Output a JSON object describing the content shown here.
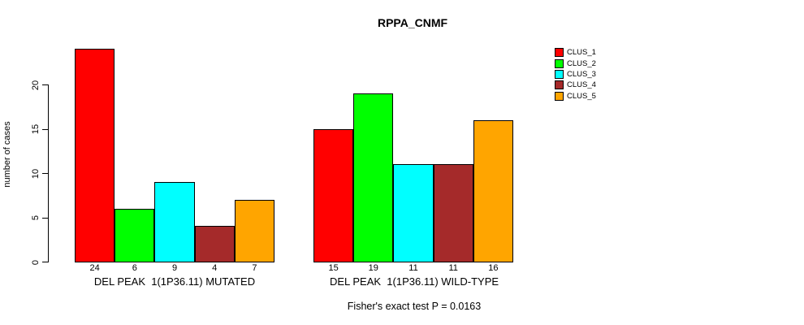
{
  "chart_data": {
    "type": "bar",
    "title": "RPPA_CNMF",
    "ylabel": "number of cases",
    "yticks": [
      0,
      5,
      10,
      15,
      20
    ],
    "ylim": [
      0,
      24
    ],
    "grid": false,
    "legend_position": "right",
    "series": [
      {
        "name": "CLUS_1",
        "color": "#FF0000"
      },
      {
        "name": "CLUS_2",
        "color": "#00FF00"
      },
      {
        "name": "CLUS_3",
        "color": "#00FFFF"
      },
      {
        "name": "CLUS_4",
        "color": "#A52A2A"
      },
      {
        "name": "CLUS_5",
        "color": "#FFA500"
      }
    ],
    "groups": [
      {
        "label": "DEL PEAK  1(1P36.11) MUTATED",
        "values": [
          24,
          6,
          9,
          4,
          7
        ]
      },
      {
        "label": "DEL PEAK  1(1P36.11) WILD-TYPE",
        "values": [
          15,
          19,
          11,
          11,
          16
        ]
      }
    ],
    "annotation": "Fisher's exact test P = 0.0163"
  }
}
